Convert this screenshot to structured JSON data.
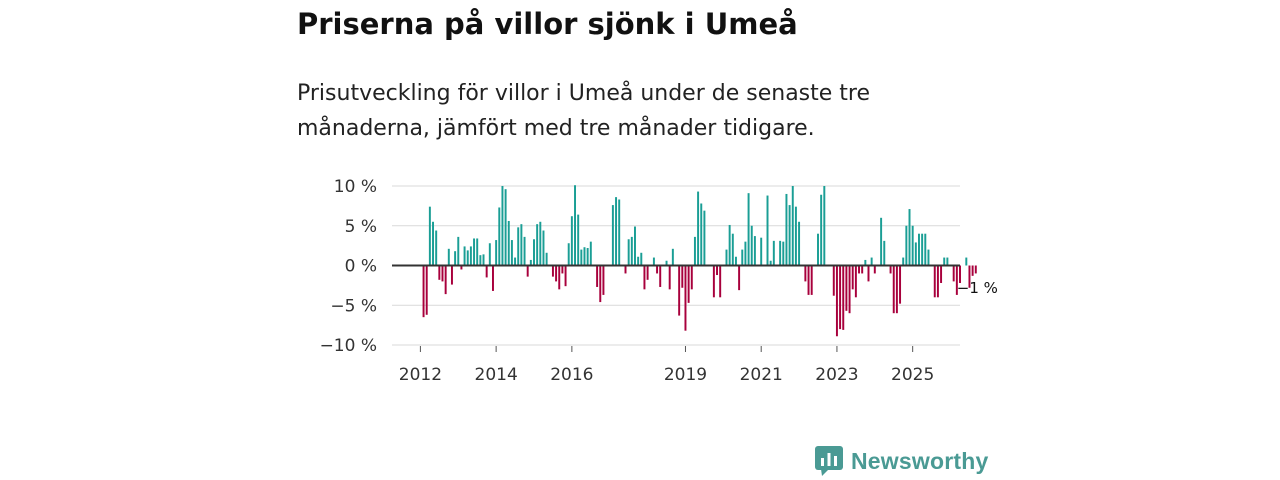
{
  "header": {
    "title": "Priserna på villor sjönk i Umeå",
    "subtitle": "Prisutveckling för villor i Umeå under de senaste tre månaderna, jämfört med tre månader tidigare."
  },
  "brand": {
    "name": "Newsworthy"
  },
  "colors": {
    "positive": "#1a9e95",
    "negative": "#a8003c",
    "grid": "#d9d9d9",
    "zero": "#333333",
    "brand": "#4a9a94"
  },
  "chart_data": {
    "type": "bar",
    "title": "Priserna på villor sjönk i Umeå",
    "xlabel": "",
    "ylabel": "",
    "ylim": [
      -10,
      10
    ],
    "y_ticks": [
      {
        "value": 10,
        "label": "10 %"
      },
      {
        "value": 5,
        "label": "5 %"
      },
      {
        "value": 0,
        "label": "0 %"
      },
      {
        "value": -5,
        "label": "−5 %"
      },
      {
        "value": -10,
        "label": "−10 %"
      }
    ],
    "x_range": [
      2011.25,
      2026.25
    ],
    "x_ticks": [
      {
        "value": 2012,
        "label": "2012"
      },
      {
        "value": 2014,
        "label": "2014"
      },
      {
        "value": 2016,
        "label": "2016"
      },
      {
        "value": 2019,
        "label": "2019"
      },
      {
        "value": 2021,
        "label": "2021"
      },
      {
        "value": 2023,
        "label": "2023"
      },
      {
        "value": 2025,
        "label": "2025"
      }
    ],
    "start": "2012-01",
    "unit": "%",
    "values": [
      0.0,
      -6.5,
      -6.2,
      7.4,
      5.5,
      4.4,
      -1.8,
      -2.0,
      -3.6,
      2.1,
      -2.4,
      1.8,
      3.6,
      -0.5,
      2.4,
      1.9,
      2.4,
      3.4,
      3.4,
      1.3,
      1.4,
      -1.5,
      2.8,
      -3.2,
      3.2,
      7.3,
      10.0,
      9.6,
      5.6,
      3.2,
      1.0,
      4.8,
      5.2,
      3.6,
      -1.4,
      0.7,
      3.3,
      5.2,
      5.5,
      4.4,
      1.6,
      0.0,
      -1.4,
      -2.0,
      -3.0,
      -1.0,
      -2.6,
      2.8,
      6.2,
      10.1,
      6.4,
      2.0,
      2.3,
      2.2,
      3.0,
      0.0,
      -2.7,
      -4.6,
      -3.7,
      0.0,
      0.0,
      7.6,
      8.6,
      8.3,
      0.0,
      -1.0,
      3.3,
      3.6,
      4.9,
      1.1,
      1.6,
      -3.0,
      -1.8,
      0.0,
      1.0,
      -1.0,
      -2.7,
      0.0,
      0.6,
      -3.0,
      2.1,
      0.0,
      -6.3,
      -2.8,
      -8.2,
      -4.7,
      -3.0,
      3.6,
      9.3,
      7.8,
      6.9,
      0.0,
      0.0,
      -4.0,
      -1.2,
      -4.0,
      0.0,
      2.0,
      5.1,
      4.0,
      1.1,
      -3.1,
      2.0,
      3.0,
      9.1,
      5.0,
      3.7,
      0.0,
      3.5,
      0.0,
      8.8,
      0.6,
      3.1,
      0.0,
      3.1,
      3.0,
      9.0,
      7.6,
      10.0,
      7.4,
      5.5,
      0.0,
      -2.0,
      -3.7,
      -3.7,
      0.0,
      4.0,
      8.9,
      10.0,
      0.0,
      0.0,
      -3.8,
      -8.9,
      -8.0,
      -8.1,
      -5.7,
      -6.0,
      -3.0,
      -4.0,
      -1.0,
      -1.0,
      0.7,
      -2.0,
      1.0,
      -1.0,
      0.0,
      6.0,
      3.1,
      0.0,
      -1.0,
      -6.0,
      -6.0,
      -4.8,
      1.0,
      5.0,
      7.1,
      5.0,
      2.9,
      4.0,
      4.0,
      4.0,
      2.0,
      0.0,
      -4.0,
      -4.0,
      -2.2,
      1.0,
      1.0,
      0.0,
      -2.0,
      -3.7,
      -2.2,
      0.0,
      1.0,
      -2.8,
      -1.3,
      -1.0
    ],
    "annotations": [
      {
        "label": "−1 %",
        "target": "last"
      }
    ]
  }
}
